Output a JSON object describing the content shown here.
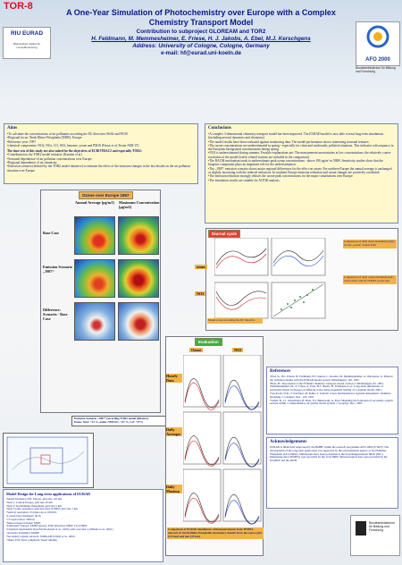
{
  "header": {
    "tag": "TOR-8",
    "title": "A One-Year Simulation of Photochemistry over Europe with a Complex Chemistry Transport Model",
    "subtitle": "Contribution to subproject GLOREAM and TOR2",
    "authors": "H. Feldmann, M. Memmesheimer, E. Friese, H. J. Jakobs, A. Ebel, M.J. Kerschgens",
    "address": "Address: University of Cologne, Cologne, Germany",
    "email": "e-mail: hf@eurad.uni-koeln.de"
  },
  "logos": {
    "left": "RIU EURAD",
    "left_sub": "Rheinisches Institut für Umweltforschung",
    "afo": "AFO 2000",
    "bmbf": "Bundesministerium für Bildung und Forschung"
  },
  "aims": {
    "heading": "Aims",
    "items": [
      "To calculate the concentrations of air pollutants according the EU directives 96/62 and 99/30",
      "Regional focus: North Rhine-Westphalia (NRW), Europe",
      "Reference year: 1997",
      "chemical components: NO2, NOx, CO, SO2, benzene, ozone and PM10 (Friese et al. Poster AER-37)"
    ],
    "intro": "The time sets of this study are also suited for the objectives of EUROTRAC2 and especially TOR2:",
    "objectives": [
      "Contribution to the TOR2 model initiative (Kuenen et al.)",
      "Seasonal dependence of air pollution concentrations over Europe",
      "Regional dependence of air chemistry",
      "Emission scenario (defined by the TOR2 model initiative) to estimate the effect of the emission changes in the last decade on the air pollution situation over Europe"
    ]
  },
  "conclusions": {
    "heading": "Conclusions",
    "items": [
      "A complex 3-dimensional chemistry transport model has been improved. The EURAD model is now able to treat long-term simulations (including aerosol dynamics and chemistry)",
      "The model results have been evaluated against monitoring data. The model performance shows interesting seasonal features:",
      "The ozone concentrations are underestimated in spring - especially for clean and moderately polluted situations. This indicates a discrepancy in the European background concentrations during spring.",
      "NO2 is underestimated during summer. Possible explanations are: The measurement uncertainties at low concentrations; the relatively coarse resolution of the model (traffic related stations are included in the comparison).",
      "The RACM mechanism tends to underestimate peak ozone concentrations - above 180 µg/m³ in NRW. Sensitivity studies show that the biogenic component plays an important role for the underestimation.",
      "The „1987“ emission scenario shows major regional differences for the effect on ozone: For northern Europe the annual average is unchanged or slightly increasing with the reduced emissions. In southern Europe emission reduction and ozone changes are positively correlated.",
      "The emission reduction strongly reduces the ozone peak concentrations for the major conurbations over Europe.",
      "The simulation results are suitable for AOT40 analysis."
    ]
  },
  "ozone_maps": {
    "title": "Ozone over Europe 1997",
    "columns": [
      "Annual Average [µg/m3]",
      "Maximum Concentration [µg/m3]"
    ],
    "rows": [
      "Base Case",
      "Emission Scenario „1987“",
      "Difference: Scenario - Base Case"
    ],
    "caption": [
      "Emission Scenario „1987“ (according TOR2 model initiative)",
      "Emiss. NOx: +41 %, anthr. NMVOC: +67 %, CO: +57%"
    ]
  },
  "diurnal": {
    "title": "Diurnal cycle",
    "labels": [
      "ozone",
      "NO2"
    ],
    "notes": [
      "Comparison of daily mean maximum (right) for the „ozone“ station Eifel",
      "Comparison of daily ozone maximum (left) with results with all TEMES ozone sites"
    ],
    "scores": "Model scores according the EU directive"
  },
  "evaluation": {
    "title": "Evaluation",
    "columns": [
      "Ozone",
      "NO2"
    ],
    "rows": [
      "Hourly Data",
      "Daily Averages",
      "Daily Maxima"
    ],
    "caption": "Comparison of EURAD simulations with measurements from TEMES network in North Rhine-Westphalia (Germany). Results from the coarse grid (125 km) and nest (25 km)."
  },
  "model_design": {
    "heading": "Model Design for Long term applications of EURAD",
    "items": [
      "Model Domain (125): Europe, grid size 125 km",
      "Nest 1: Central Europe, grid size 25 km",
      "Nest 2: North Rhine-Westphalia, grid size 5 km",
      "Nest 3 (only episodes): selected areas in NRW, grid size 1 km",
      "Vertical resolution: 23 layers up to 100 hPa",
      "Lowest layer thickness: 40 m",
      "15 layers below 3000 m",
      "Meteorological model: MM5",
      "Emissions: Europe: EMEP (gross), TNO (Particle); NRW: LUA NRW",
      "Chemical mechanism: RACM (Stockwell et al., 1997) with cos2 and co (Hanels et al., 2001)",
      "Aerosols: Dynamics MADE",
      "Secondary organic aerosols: SORGAM (Schell et al., 2001)",
      "Tasks: ESL Nord completed; Nest2 running"
    ]
  },
  "references": {
    "heading": "References",
    "items": [
      "Ebel, A., H.J. Elbern, H. Feldmann, H.J. Jakobs, C. Kessler, M. Memmesheimer, A. Oberreuter, G. Piekorz: Air pollution studies with the EURAD model system. Mitteilungen, 120, 1997.",
      "Hass, H.: Description of the EURAD chemistry-transport-model version 2, Mitteilungen, 83, 1993.",
      "Memmesheimer, M., E. Friese, A. Ebel, H.J. Jakobs, H. Feldmann et al.: Long-term simulations of particulate matter in Europe on different scales using sequential nesting of a regional model, 2001.",
      "Stockwell, W.R., F. Kirchner, M. Kuhn, S. Seefeld: A new mechanism for regional atmospheric chemistry modeling, J. Geophys. Res., 102, 1997.",
      "Schell, B., I.J. Ackermann, H. Hass, F.S. Binkowski, A. Ebel: Modeling the formation of secondary organic aerosol within a comprehensive air quality model system, J. Geophys. Res., 2001."
    ]
  },
  "acknowledgement": {
    "heading": "Acknowledgements",
    "text": "EURAD is financially supported by the BMBF within the research programme AFO 2000 (07ATF). The development of the long-term application was supported by the environmental agency of North Rhine-Westphalia (LUA NRW). Simulations have been performed at the Forschungszentrum Jülich (NIC). Monitoring data (TEMES) were provided by the LUA NRW. Meteorological data were provided by the ECMWF and the DWD."
  }
}
